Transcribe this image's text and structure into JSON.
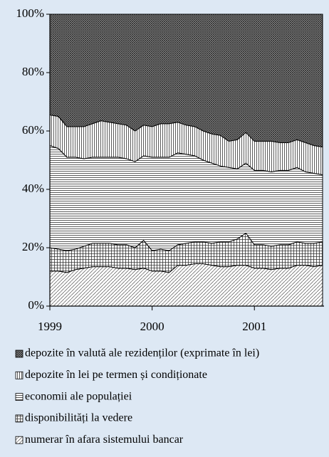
{
  "chart_data": {
    "type": "stacked_area",
    "categories": [
      "1999",
      null,
      null,
      null,
      null,
      null,
      null,
      null,
      null,
      null,
      null,
      null,
      "2000",
      null,
      null,
      null,
      null,
      null,
      null,
      null,
      null,
      null,
      null,
      null,
      "2001",
      null,
      null,
      null,
      null,
      null,
      null,
      null,
      null
    ],
    "series": [
      {
        "name": "numerar în afara sistemului bancar",
        "color": "#000000",
        "hatch": "diagonal",
        "values": [
          12,
          12,
          11.5,
          12.5,
          13,
          13.5,
          13.5,
          13.5,
          13,
          13,
          12.5,
          13,
          12,
          12,
          11.5,
          14,
          14,
          14.5,
          14.5,
          14,
          13.5,
          13.5,
          14,
          14,
          13,
          13,
          12.5,
          13,
          13,
          14,
          14,
          13.5,
          14
        ]
      },
      {
        "name": "disponibilități la vedere",
        "color": "#000000",
        "hatch": "grid",
        "values": [
          8,
          7.5,
          7.5,
          7,
          7.5,
          8,
          8,
          8,
          8,
          8,
          7.5,
          9.5,
          7,
          7.5,
          7.5,
          7,
          7.5,
          7.5,
          7.5,
          7.5,
          8.5,
          8.5,
          9,
          11,
          8,
          8,
          8,
          8,
          8,
          8,
          7.5,
          8,
          8
        ]
      },
      {
        "name": "economii ale populației",
        "color": "#000000",
        "hatch": "horizontal",
        "values": [
          35,
          34.5,
          32,
          31.5,
          30,
          29.5,
          29.5,
          29.5,
          30,
          29.5,
          29.5,
          29,
          32,
          31.5,
          32,
          31.5,
          30.5,
          29.5,
          28,
          27.5,
          26,
          25.5,
          24,
          24,
          25.5,
          25.5,
          25.5,
          25.5,
          25.5,
          25.5,
          24.5,
          24,
          23
        ]
      },
      {
        "name": "depozite în lei pe termen și condiționate",
        "color": "#000000",
        "hatch": "vertical",
        "values": [
          10.5,
          11,
          10.5,
          10.5,
          11,
          11.5,
          12.5,
          12,
          11.5,
          11.5,
          10.5,
          10.5,
          10.5,
          11.5,
          11.5,
          10.5,
          10,
          10,
          10,
          10,
          10.5,
          9,
          10,
          10.5,
          10,
          10,
          10.5,
          9.5,
          9.5,
          9.5,
          10,
          9.5,
          9.5
        ]
      },
      {
        "name": "depozite în valută ale rezidenților (exprimate în lei)",
        "color": "#000000",
        "hatch": "crosshatch",
        "values": [
          34.5,
          35,
          38.5,
          38.5,
          38.5,
          37.5,
          36.5,
          37,
          37.5,
          38,
          40,
          38,
          38.5,
          37.5,
          37.5,
          37,
          38,
          38.5,
          40,
          41,
          41.5,
          43.5,
          43,
          40.5,
          43.5,
          43.5,
          43.5,
          44,
          44,
          43,
          44,
          45,
          45.5
        ]
      }
    ],
    "ylim": [
      0,
      100
    ],
    "yticks": [
      {
        "value": 0,
        "label": "0%"
      },
      {
        "value": 20,
        "label": "20%"
      },
      {
        "value": 40,
        "label": "40%"
      },
      {
        "value": 60,
        "label": "60%"
      },
      {
        "value": 80,
        "label": "80%"
      },
      {
        "value": 100,
        "label": "100%"
      }
    ]
  }
}
